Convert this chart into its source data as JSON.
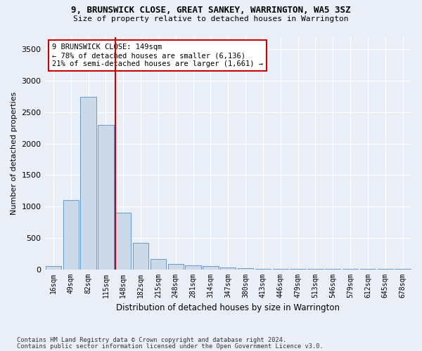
{
  "title1": "9, BRUNSWICK CLOSE, GREAT SANKEY, WARRINGTON, WA5 3SZ",
  "title2": "Size of property relative to detached houses in Warrington",
  "xlabel": "Distribution of detached houses by size in Warrington",
  "ylabel": "Number of detached properties",
  "bar_values": [
    50,
    1100,
    2750,
    2300,
    900,
    420,
    160,
    90,
    60,
    50,
    30,
    20,
    10,
    5,
    2,
    2,
    2,
    1,
    1,
    1,
    1
  ],
  "bar_labels": [
    "16sqm",
    "49sqm",
    "82sqm",
    "115sqm",
    "148sqm",
    "182sqm",
    "215sqm",
    "248sqm",
    "281sqm",
    "314sqm",
    "347sqm",
    "380sqm",
    "413sqm",
    "446sqm",
    "479sqm",
    "513sqm",
    "546sqm",
    "579sqm",
    "612sqm",
    "645sqm",
    "678sqm"
  ],
  "bar_color": "#ccd9e8",
  "bar_edgecolor": "#6699cc",
  "vline_index": 4,
  "vline_color": "#cc0000",
  "annotation_text": "9 BRUNSWICK CLOSE: 149sqm\n← 78% of detached houses are smaller (6,136)\n21% of semi-detached houses are larger (1,661) →",
  "annotation_box_edgecolor": "#cc0000",
  "ylim": [
    0,
    3700
  ],
  "yticks": [
    0,
    500,
    1000,
    1500,
    2000,
    2500,
    3000,
    3500
  ],
  "footnote1": "Contains HM Land Registry data © Crown copyright and database right 2024.",
  "footnote2": "Contains public sector information licensed under the Open Government Licence v3.0.",
  "bg_color": "#eaeff7",
  "plot_bg_color": "#eaeff7"
}
